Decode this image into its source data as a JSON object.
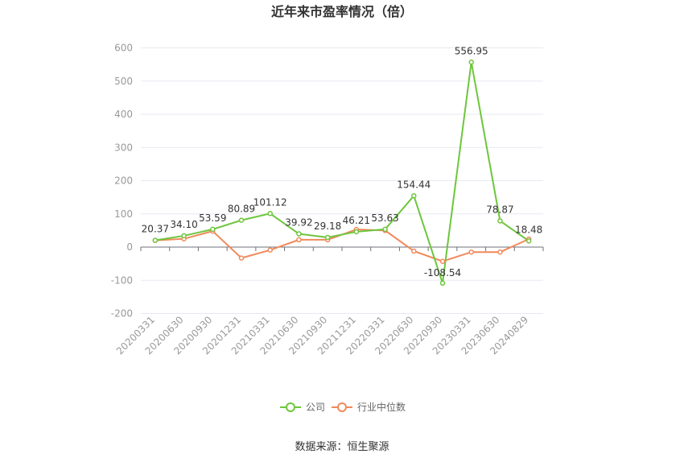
{
  "chart_data": {
    "type": "line",
    "title": "近年来市盈率情况（倍）",
    "categories": [
      "20200331",
      "20200630",
      "20200930",
      "20201231",
      "20210331",
      "20210630",
      "20210930",
      "20211231",
      "20220331",
      "20220630",
      "20220930",
      "20230331",
      "20230630",
      "20240829"
    ],
    "series": [
      {
        "name": "公司",
        "color": "#6dc63c",
        "values": [
          20.37,
          34.1,
          53.59,
          80.89,
          101.12,
          39.92,
          29.18,
          46.21,
          53.63,
          154.44,
          -108.54,
          556.95,
          78.87,
          18.48
        ],
        "labels": [
          "20.37",
          "34.10",
          "53.59",
          "80.89",
          "101.12",
          "39.92",
          "29.18",
          "46.21",
          "53.63",
          "154.44",
          "-108.54",
          "556.95",
          "78.87",
          "18.48"
        ]
      },
      {
        "name": "行业中位数",
        "color": "#f0895a",
        "values": [
          20,
          25,
          48,
          -33,
          -9,
          22,
          22,
          53,
          50,
          -12,
          -43,
          -15,
          -15,
          24
        ]
      }
    ],
    "y_ticks": [
      "600",
      "500",
      "400",
      "300",
      "200",
      "100",
      "0",
      "-100",
      "-200"
    ],
    "ylim": [
      -200,
      600
    ],
    "grid": true,
    "legend_position": "bottom"
  },
  "source": "数据来源：恒生聚源"
}
